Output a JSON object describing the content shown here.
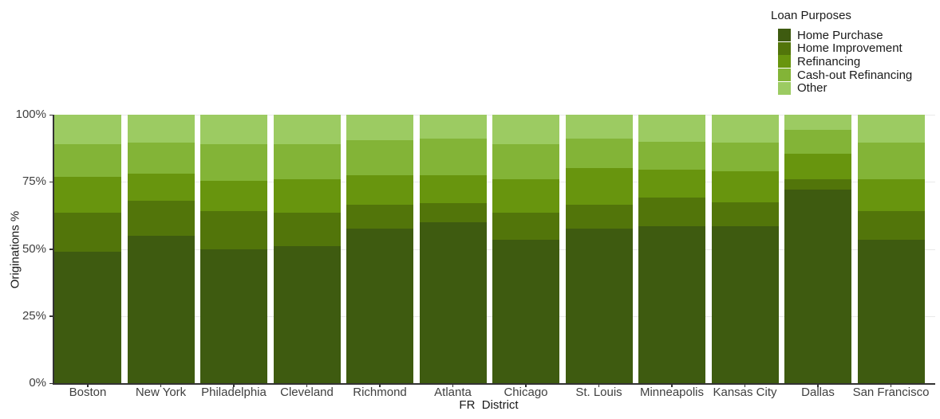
{
  "chart_data": {
    "type": "bar",
    "variant": "stacked-percent",
    "title": "",
    "xlabel": "FR  District",
    "ylabel": "Originations %",
    "ylim": [
      0,
      100
    ],
    "ytick_labels": [
      "0%",
      "25%",
      "50%",
      "75%",
      "100%"
    ],
    "yticks": [
      0,
      25,
      50,
      75,
      100
    ],
    "grid": "horizontal, very light, at 25/50/75/100",
    "legend_position": "top-right",
    "legend_title": "Loan Purposes",
    "categories": [
      "Boston",
      "New York",
      "Philadelphia",
      "Cleveland",
      "Richmond",
      "Atlanta",
      "Chicago",
      "St. Louis",
      "Minneapolis",
      "Kansas City",
      "Dallas",
      "San Francisco"
    ],
    "stack_order_note": "Home Purchase on top of each bar, Other at bottom",
    "series": [
      {
        "name": "Home Purchase",
        "color": "#3E5B10",
        "values": [
          49,
          55,
          50,
          51,
          57.5,
          60,
          53.5,
          57.5,
          58.5,
          58.5,
          72,
          53.5
        ]
      },
      {
        "name": "Home Improvement",
        "color": "#52750A",
        "values": [
          14.5,
          13,
          14,
          12.5,
          9,
          7,
          10,
          9,
          10.5,
          9,
          4,
          10.5
        ]
      },
      {
        "name": "Refinancing",
        "color": "#68950E",
        "values": [
          13.5,
          10,
          11.5,
          12.5,
          11,
          10.5,
          12.5,
          13.5,
          10.5,
          11.5,
          9.5,
          12
        ]
      },
      {
        "name": "Cash-out Refinancing",
        "color": "#83B437",
        "values": [
          12,
          11.5,
          13.5,
          13,
          13,
          13.5,
          13,
          11,
          10.5,
          10.5,
          9,
          13.5
        ]
      },
      {
        "name": "Other",
        "color": "#9CCB62",
        "values": [
          11,
          10.5,
          11,
          11,
          9.5,
          9,
          11,
          9,
          10,
          10.5,
          5.5,
          10.5
        ]
      }
    ]
  }
}
